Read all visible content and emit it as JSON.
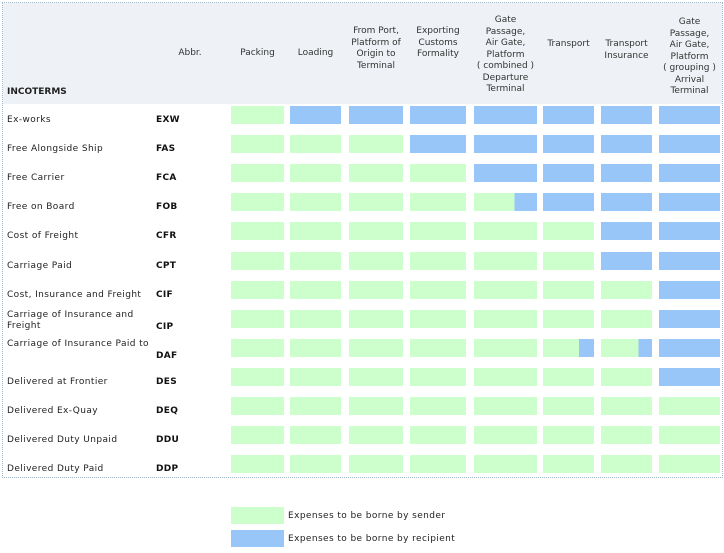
{
  "colors": {
    "sender": "#ccffcc",
    "recipient": "#99c6f9"
  },
  "header": {
    "incoterms": "INCOTERMS",
    "abbr": "Abbr.",
    "columns": [
      "Packing",
      "Loading",
      "From Port,\nPlatform of\nOrigin to\nTerminal",
      "Exporting\nCustoms\nFormality",
      "Gate\nPassage,\nAir Gate,\nPlatform\n( combined )\nDeparture\nTerminal",
      "Transport",
      "Transport\nInsurance",
      "Gate\nPassage,\nAir Gate,\nPlatform\n( grouping )\nArrival\nTerminal"
    ]
  },
  "rows": [
    {
      "name": "Ex-works",
      "abbr": "EXW",
      "cells": [
        "S",
        "R",
        "R",
        "R",
        "R",
        "R",
        "R",
        "R"
      ]
    },
    {
      "name": "Free Alongside Ship",
      "abbr": "FAS",
      "cells": [
        "S",
        "S",
        "S",
        "R",
        "R",
        "R",
        "R",
        "R"
      ]
    },
    {
      "name": "Free Carrier",
      "abbr": "FCA",
      "cells": [
        "S",
        "S",
        "S",
        "S",
        "R",
        "R",
        "R",
        "R"
      ]
    },
    {
      "name": "Free on Board",
      "abbr": "FOB",
      "cells": [
        "S",
        "S",
        "S",
        "S",
        "S/R",
        "R",
        "R",
        "R"
      ]
    },
    {
      "name": "Cost of Freight",
      "abbr": "CFR",
      "cells": [
        "S",
        "S",
        "S",
        "S",
        "S",
        "S",
        "R",
        "R"
      ]
    },
    {
      "name": "Carriage Paid",
      "abbr": "CPT",
      "cells": [
        "S",
        "S",
        "S",
        "S",
        "S",
        "S",
        "R",
        "R"
      ]
    },
    {
      "name": "Cost, Insurance and Freight",
      "abbr": "CIF",
      "cells": [
        "S",
        "S",
        "S",
        "S",
        "S",
        "S",
        "S",
        "R"
      ]
    },
    {
      "name": "Carriage of Insurance and Freight",
      "abbr": "CIP",
      "cells": [
        "S",
        "S",
        "S",
        "S",
        "S",
        "S",
        "S",
        "R"
      ]
    },
    {
      "name": "Carriage of Insurance Paid to",
      "abbr": "DAF",
      "cells": [
        "S",
        "S",
        "S",
        "S",
        "S",
        "S/R",
        "S/R",
        "R"
      ]
    },
    {
      "name": "Delivered at Frontier",
      "abbr": "DES",
      "cells": [
        "S",
        "S",
        "S",
        "S",
        "S",
        "S",
        "S",
        "R"
      ]
    },
    {
      "name": "Delivered Ex-Quay",
      "abbr": "DEQ",
      "cells": [
        "S",
        "S",
        "S",
        "S",
        "S",
        "S",
        "S",
        "S"
      ]
    },
    {
      "name": "Delivered Duty Unpaid",
      "abbr": "DDU",
      "cells": [
        "S",
        "S",
        "S",
        "S",
        "S",
        "S",
        "S",
        "S"
      ]
    },
    {
      "name": "Delivered Duty Paid",
      "abbr": "DDP",
      "cells": [
        "S",
        "S",
        "S",
        "S",
        "S",
        "S",
        "S",
        "S"
      ]
    }
  ],
  "legend": {
    "sender": "Expenses to be borne by sender",
    "recipient": "Expenses to be borne by recipient"
  }
}
